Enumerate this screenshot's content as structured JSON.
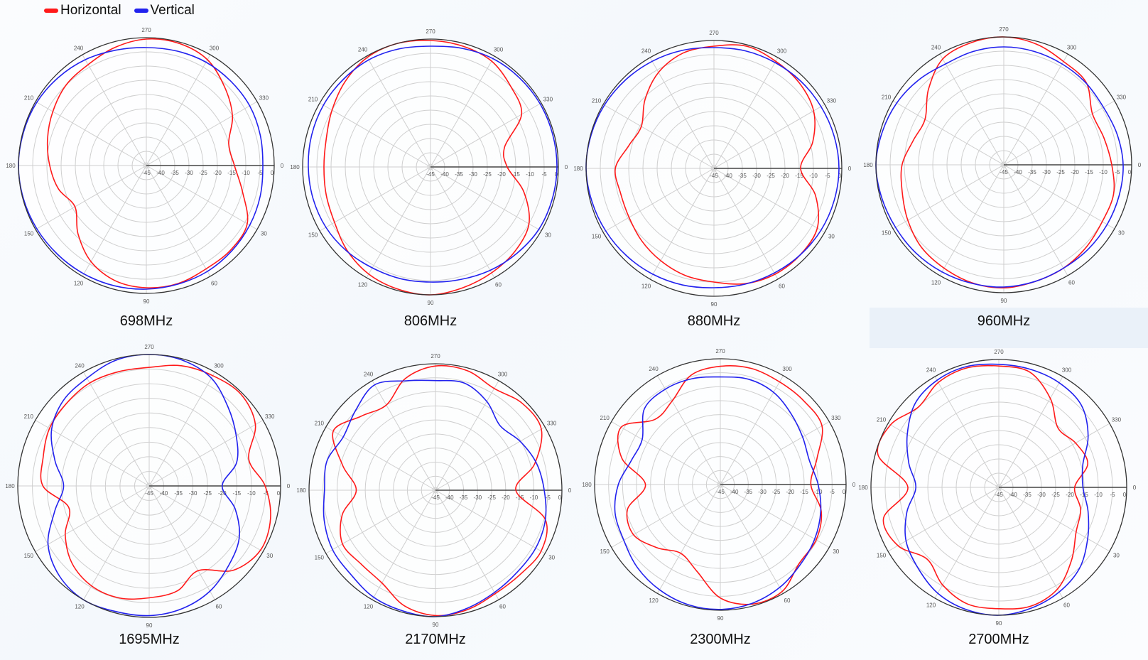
{
  "legend": [
    {
      "name": "Horizontal",
      "color": "#ff1a1a"
    },
    {
      "name": "Vertical",
      "color": "#2222ee"
    }
  ],
  "chart_data": [
    {
      "type": "polar",
      "title": "698MHz",
      "angles_deg": [
        0,
        15,
        30,
        45,
        60,
        75,
        90,
        105,
        120,
        135,
        150,
        165,
        180,
        195,
        210,
        225,
        240,
        255,
        270,
        285,
        300,
        315,
        330,
        345
      ],
      "r_range": [
        -45,
        0
      ],
      "angle_ticks": [
        "0",
        "30",
        "60",
        "90",
        "120",
        "150",
        "180",
        "210",
        "240",
        "270",
        "300",
        "330"
      ],
      "r_ticks": [
        "-45",
        "-40",
        "-35",
        "-30",
        "-25",
        "-20",
        "-15",
        "-10",
        "-5",
        "0"
      ],
      "series": [
        {
          "name": "Horizontal",
          "values": [
            -14,
            -10,
            -4,
            -3,
            -3,
            -2,
            -2,
            -3,
            -6,
            -11,
            -16,
            -13,
            -11,
            -9,
            -7,
            -5,
            -4,
            -2,
            -0.5,
            -0.5,
            -2,
            -6,
            -10,
            -15
          ]
        },
        {
          "name": "Vertical",
          "values": [
            -4,
            -3.5,
            -3,
            -2.5,
            -2,
            -1.8,
            -1.5,
            -1.2,
            -1,
            -0.8,
            -0.5,
            -0.2,
            0,
            -0.2,
            -0.5,
            -1.2,
            -2,
            -3,
            -3.5,
            -3.3,
            -3,
            -3,
            -3,
            -3.5
          ]
        }
      ]
    },
    {
      "type": "polar",
      "title": "806MHz",
      "angles_deg": [
        0,
        15,
        30,
        45,
        60,
        75,
        90,
        105,
        120,
        135,
        150,
        165,
        180,
        195,
        210,
        225,
        240,
        255,
        270,
        285,
        300,
        315,
        330,
        345
      ],
      "r_range": [
        -45,
        0
      ],
      "angle_ticks": [
        "0",
        "30",
        "60",
        "90",
        "120",
        "150",
        "180",
        "210",
        "240",
        "270",
        "300",
        "330"
      ],
      "r_ticks": [
        "-45",
        "-40",
        "-35",
        "-30",
        "-25",
        "-20",
        "-15",
        "-10",
        "-5",
        "0"
      ],
      "series": [
        {
          "name": "Horizontal",
          "values": [
            -18,
            -11,
            -5,
            -3,
            -2,
            -1,
            0,
            -0.5,
            -1.5,
            -3.5,
            -6,
            -7,
            -7.5,
            -7,
            -5,
            -2.5,
            -0.5,
            0,
            -0.5,
            -1,
            -2,
            -5,
            -8,
            -18
          ]
        },
        {
          "name": "Vertical",
          "values": [
            -0.5,
            -0.7,
            -1,
            -2,
            -3,
            -4,
            -4.5,
            -4.3,
            -4,
            -3.2,
            -2.5,
            -2.2,
            -2,
            -1.7,
            -1.5,
            -1.5,
            -1.5,
            -2,
            -2.5,
            -1.8,
            -1,
            -0.7,
            -0.5,
            -0.5
          ]
        }
      ]
    },
    {
      "type": "polar",
      "title": "880MHz",
      "angles_deg": [
        0,
        15,
        30,
        45,
        60,
        75,
        90,
        105,
        120,
        135,
        150,
        165,
        180,
        195,
        210,
        225,
        240,
        255,
        270,
        285,
        300,
        315,
        330,
        345
      ],
      "r_range": [
        -45,
        0
      ],
      "angle_ticks": [
        "0",
        "30",
        "60",
        "90",
        "120",
        "150",
        "180",
        "210",
        "240",
        "270",
        "300",
        "330"
      ],
      "r_ticks": [
        "-45",
        "-40",
        "-35",
        "-30",
        "-25",
        "-20",
        "-15",
        "-10",
        "-5",
        "0"
      ],
      "series": [
        {
          "name": "Horizontal",
          "values": [
            -14.5,
            -8,
            -3,
            -2,
            -2,
            -3,
            -5,
            -6,
            -7.5,
            -9,
            -10.5,
            -11,
            -10.3,
            -14,
            -15.5,
            -10.7,
            -6,
            -3,
            -2,
            -0.5,
            -1.5,
            -2.5,
            -4.5,
            -9
          ]
        },
        {
          "name": "Vertical",
          "values": [
            -1,
            -1.2,
            -1.5,
            -2,
            -2.5,
            -2.8,
            -3,
            -2.5,
            -2,
            -1.5,
            -1,
            -0.5,
            0,
            -0.2,
            -0.5,
            -1,
            -1.5,
            -2,
            -2.5,
            -2.2,
            -2,
            -1.7,
            -1.5,
            -1.2
          ]
        }
      ]
    },
    {
      "type": "polar",
      "title": "960MHz",
      "angles_deg": [
        0,
        15,
        30,
        45,
        60,
        75,
        90,
        105,
        120,
        135,
        150,
        165,
        180,
        195,
        210,
        225,
        240,
        255,
        270,
        285,
        300,
        315,
        330,
        345
      ],
      "r_range": [
        -45,
        0
      ],
      "angle_ticks": [
        "0",
        "30",
        "60",
        "90",
        "120",
        "150",
        "180",
        "210",
        "240",
        "270",
        "300",
        "330"
      ],
      "r_ticks": [
        "-45",
        "-40",
        "-35",
        "-30",
        "-25",
        "-20",
        "-15",
        "-10",
        "-5",
        "0"
      ],
      "series": [
        {
          "name": "Horizontal",
          "values": [
            -7,
            -5,
            -5,
            -4,
            -3,
            -2.5,
            -1.7,
            -2,
            -3,
            -4,
            -6,
            -8,
            -9.2,
            -12,
            -13,
            -7.5,
            -2,
            -0.5,
            0,
            -1,
            -3,
            -4,
            -9,
            -8.5
          ]
        },
        {
          "name": "Vertical",
          "values": [
            -3,
            -3,
            -3,
            -3,
            -3,
            -2.5,
            -2,
            -1.8,
            -1.5,
            -1.2,
            -1,
            -0.5,
            0,
            -0.7,
            -1.5,
            -2.7,
            -4,
            -3.7,
            -3.5,
            -3.7,
            -4,
            -4.2,
            -4.5,
            -3.7
          ]
        }
      ]
    },
    {
      "type": "polar",
      "title": "1695MHz",
      "angles_deg": [
        0,
        15,
        30,
        45,
        60,
        75,
        90,
        105,
        120,
        135,
        150,
        165,
        180,
        195,
        210,
        225,
        240,
        255,
        270,
        285,
        300,
        315,
        330,
        345
      ],
      "r_range": [
        -45,
        0
      ],
      "angle_ticks": [
        "0",
        "30",
        "60",
        "90",
        "120",
        "150",
        "180",
        "210",
        "240",
        "270",
        "300",
        "330"
      ],
      "r_ticks": [
        "-45",
        "-40",
        "-35",
        "-30",
        "-25",
        "-20",
        "-15",
        "-10",
        "-5",
        "0"
      ],
      "series": [
        {
          "name": "Horizontal",
          "values": [
            -5.3,
            -2,
            -1,
            -4.2,
            -11.5,
            -7.8,
            -6.7,
            -5.3,
            -5.5,
            -7.6,
            -11.8,
            -16.5,
            -8.6,
            -7.4,
            -5.6,
            -5,
            -4.3,
            -4.5,
            -4.4,
            -2.4,
            -1.4,
            -0.6,
            -3,
            -9.7
          ]
        },
        {
          "name": "Vertical",
          "values": [
            -20,
            -14.5,
            -9.4,
            -6.5,
            -3.4,
            -1.5,
            -0.6,
            -0.5,
            0,
            -1.5,
            -5,
            -11.5,
            -15.7,
            -11.6,
            -6.4,
            -3.5,
            -2.4,
            -0.5,
            0,
            -0.5,
            -2.4,
            -6.8,
            -10.6,
            -14
          ]
        }
      ]
    },
    {
      "type": "polar",
      "title": "2170MHz",
      "angles_deg": [
        0,
        15,
        30,
        45,
        60,
        75,
        90,
        105,
        120,
        135,
        150,
        165,
        180,
        195,
        210,
        225,
        240,
        255,
        270,
        285,
        300,
        315,
        330,
        345
      ],
      "r_range": [
        -45,
        0
      ],
      "angle_ticks": [
        "0",
        "30",
        "60",
        "90",
        "120",
        "150",
        "180",
        "210",
        "240",
        "270",
        "300",
        "330"
      ],
      "r_ticks": [
        "-45",
        "-40",
        "-35",
        "-30",
        "-25",
        "-20",
        "-15",
        "-10",
        "-5",
        "0"
      ],
      "series": [
        {
          "name": "Horizontal",
          "values": [
            -16.4,
            -4.5,
            -1.6,
            -2.5,
            -2.5,
            -1,
            -0.4,
            -2.4,
            -6.9,
            -7.7,
            -6.8,
            -10.6,
            -16.8,
            -10.8,
            -3,
            -7.7,
            -10,
            -3.8,
            -0.8,
            -1,
            -3.2,
            -1.3,
            -1.5,
            -8.4
          ]
        },
        {
          "name": "Vertical",
          "values": [
            -6.3,
            -4.5,
            -3.8,
            -3.8,
            -3,
            -1.5,
            0,
            -0.5,
            -1,
            -2.5,
            -2.7,
            -4,
            -5.5,
            -5,
            -7.1,
            -4.8,
            -1.7,
            -4.7,
            -6,
            -5.5,
            -8.5,
            -12.5,
            -10.2,
            -7.8
          ]
        }
      ]
    },
    {
      "type": "polar",
      "title": "2300MHz",
      "angles_deg": [
        0,
        15,
        30,
        45,
        60,
        75,
        90,
        105,
        120,
        135,
        150,
        165,
        180,
        195,
        210,
        225,
        240,
        255,
        270,
        285,
        300,
        315,
        330,
        345
      ],
      "r_range": [
        -45,
        0
      ],
      "angle_ticks": [
        "0",
        "30",
        "60",
        "90",
        "120",
        "150",
        "180",
        "210",
        "240",
        "270",
        "300",
        "330"
      ],
      "r_ticks": [
        "-45",
        "-40",
        "-35",
        "-30",
        "-25",
        "-20",
        "-15",
        "-10",
        "-5",
        "0"
      ],
      "series": [
        {
          "name": "Horizontal",
          "values": [
            -12.6,
            -7.6,
            -5.4,
            -5.1,
            -0.8,
            -0.7,
            -4.4,
            -12.8,
            -16.6,
            -13,
            -9.1,
            -10.6,
            -18.2,
            -8.5,
            -4,
            -12,
            -10.5,
            -4.5,
            -2.7,
            -2,
            -2.6,
            -2.7,
            -3,
            -9.2
          ]
        },
        {
          "name": "Vertical",
          "values": [
            -10,
            -7.8,
            -6,
            -4.5,
            -2.5,
            -1,
            -0.3,
            -0.5,
            -1.5,
            -3,
            -5.1,
            -6,
            -8.5,
            -12,
            -12.7,
            -6.6,
            -5.6,
            -5.8,
            -6.5,
            -6,
            -6.9,
            -9.2,
            -11,
            -12
          ]
        }
      ]
    },
    {
      "type": "polar",
      "title": "2700MHz",
      "angles_deg": [
        0,
        15,
        30,
        45,
        60,
        75,
        90,
        105,
        120,
        135,
        150,
        165,
        180,
        195,
        210,
        225,
        240,
        255,
        270,
        285,
        300,
        315,
        330,
        345
      ],
      "r_range": [
        -45,
        0
      ],
      "angle_ticks": [
        "0",
        "30",
        "60",
        "90",
        "120",
        "150",
        "180",
        "210",
        "240",
        "270",
        "300",
        "330"
      ],
      "r_ticks": [
        "-45",
        "-40",
        "-35",
        "-30",
        "-25",
        "-20",
        "-15",
        "-10",
        "-5",
        "0"
      ],
      "series": [
        {
          "name": "Horizontal",
          "values": [
            -18.3,
            -15.2,
            -13.6,
            -8.8,
            -3.7,
            -1.7,
            -2.3,
            -2.5,
            -5.4,
            -9.3,
            -4,
            -3,
            -13,
            -1,
            -1,
            -5,
            -2.4,
            -1.5,
            -2.3,
            -3,
            -8.8,
            -15.5,
            -13.8,
            -12.6
          ]
        },
        {
          "name": "Vertical",
          "values": [
            -15.4,
            -12.5,
            -8.9,
            -4.8,
            -2.5,
            -1,
            0,
            -0.5,
            -2,
            -4.8,
            -7.3,
            -11.5,
            -15.8,
            -12.2,
            -7.8,
            -3.3,
            -1.5,
            -1,
            -1.7,
            -2,
            -2.5,
            -4,
            -8.7,
            -14.4
          ]
        }
      ]
    }
  ]
}
